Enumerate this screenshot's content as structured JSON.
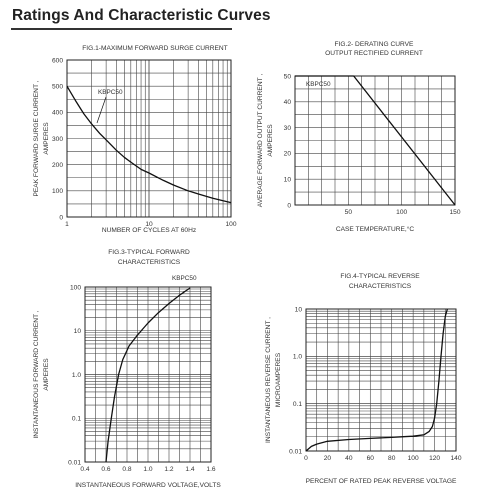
{
  "page": {
    "title": "Ratings And Characteristic Curves"
  },
  "chart_data": [
    {
      "id": "fig1",
      "type": "line",
      "title": "FIG.1-MAXIMUM FORWARD SURGE CURRENT",
      "xlabel": "NUMBER OF CYCLES AT 60Hz",
      "ylabel": [
        "PEAK FORWARD SURGE CURRENT ,",
        "AMPERES"
      ],
      "x_scale": "log",
      "y_scale": "linear",
      "xlim": [
        1,
        100
      ],
      "ylim": [
        0,
        600
      ],
      "x_ticks": [
        1,
        10,
        100
      ],
      "y_ticks": [
        0,
        100,
        200,
        300,
        400,
        500,
        600
      ],
      "grid": true,
      "series": [
        {
          "name": "KBPC50",
          "x": [
            1,
            1.3,
            1.6,
            2,
            2.5,
            3,
            4,
            5,
            6,
            8,
            10,
            15,
            20,
            30,
            40,
            60,
            80,
            100
          ],
          "y": [
            500,
            440,
            395,
            355,
            320,
            295,
            255,
            228,
            210,
            182,
            168,
            140,
            122,
            100,
            88,
            72,
            62,
            55
          ]
        }
      ]
    },
    {
      "id": "fig2",
      "type": "line",
      "title": [
        "FIG.2- DERATING CURVE",
        "OUTPUT RECTIFIED CURRENT"
      ],
      "xlabel": "CASE TEMPERATURE,°C",
      "ylabel": [
        "AVERAGE  FORWARD  OUTPUT  CURRENT ,",
        "AMPERES"
      ],
      "x_scale": "linear",
      "y_scale": "linear",
      "xlim": [
        0,
        150
      ],
      "ylim": [
        0,
        50
      ],
      "x_ticks": [
        50,
        100,
        150
      ],
      "y_ticks": [
        0,
        10,
        20,
        30,
        40,
        50
      ],
      "grid": true,
      "series": [
        {
          "name": "KBPC50",
          "x": [
            0,
            55,
            150
          ],
          "y": [
            50,
            50,
            0
          ]
        }
      ]
    },
    {
      "id": "fig3",
      "type": "line",
      "title": [
        "FIG.3-TYPICAL FORWARD",
        "CHARACTERISTICS"
      ],
      "xlabel": "INSTANTANEOUS FORWARD VOLTAGE,VOLTS",
      "ylabel": [
        "INSTANTANEOUS  FORWARD  CURRENT ,",
        "AMPERES"
      ],
      "x_scale": "linear",
      "y_scale": "log",
      "xlim": [
        0.4,
        1.6
      ],
      "ylim": [
        0.01,
        100
      ],
      "x_ticks": [
        0.4,
        0.6,
        0.8,
        1.0,
        1.2,
        1.4,
        1.6
      ],
      "y_ticks": [
        0.01,
        0.1,
        1.0,
        10,
        100
      ],
      "y_tick_labels": [
        "0.01",
        "0.1",
        "1.0",
        "10",
        "100"
      ],
      "grid": true,
      "series": [
        {
          "name": "KBPC50",
          "x": [
            0.6,
            0.62,
            0.65,
            0.68,
            0.72,
            0.76,
            0.82,
            0.9,
            1.0,
            1.1,
            1.2,
            1.3,
            1.4
          ],
          "y": [
            0.01,
            0.03,
            0.1,
            0.3,
            1.0,
            2.2,
            4.5,
            8,
            15,
            26,
            42,
            65,
            95
          ]
        }
      ]
    },
    {
      "id": "fig4",
      "type": "line",
      "title": [
        "FIG.4-TYPICAL REVERSE",
        "CHARACTERISTICS"
      ],
      "xlabel": "PERCENT OF RATED PEAK REVERSE VOLTAGE",
      "ylabel": [
        "INSTANTANEOUS  REVERSE  CURRENT ,",
        "MICROAMPERES"
      ],
      "x_scale": "linear",
      "y_scale": "log",
      "xlim": [
        0,
        140
      ],
      "ylim": [
        0.01,
        10
      ],
      "x_ticks": [
        0,
        20,
        40,
        60,
        80,
        100,
        120,
        140
      ],
      "y_ticks": [
        0.01,
        0.1,
        1.0,
        10
      ],
      "y_tick_labels": [
        "0.01",
        "0.1",
        "1.0",
        "10"
      ],
      "grid": true,
      "series": [
        {
          "name": "",
          "x": [
            0,
            5,
            10,
            20,
            40,
            60,
            80,
            100,
            110,
            115,
            118,
            120,
            122,
            124,
            126,
            128,
            130,
            132
          ],
          "y": [
            0.01,
            0.0125,
            0.014,
            0.016,
            0.0175,
            0.0185,
            0.0195,
            0.0205,
            0.022,
            0.026,
            0.033,
            0.05,
            0.1,
            0.3,
            1.0,
            3.0,
            7.0,
            10
          ]
        }
      ]
    }
  ]
}
